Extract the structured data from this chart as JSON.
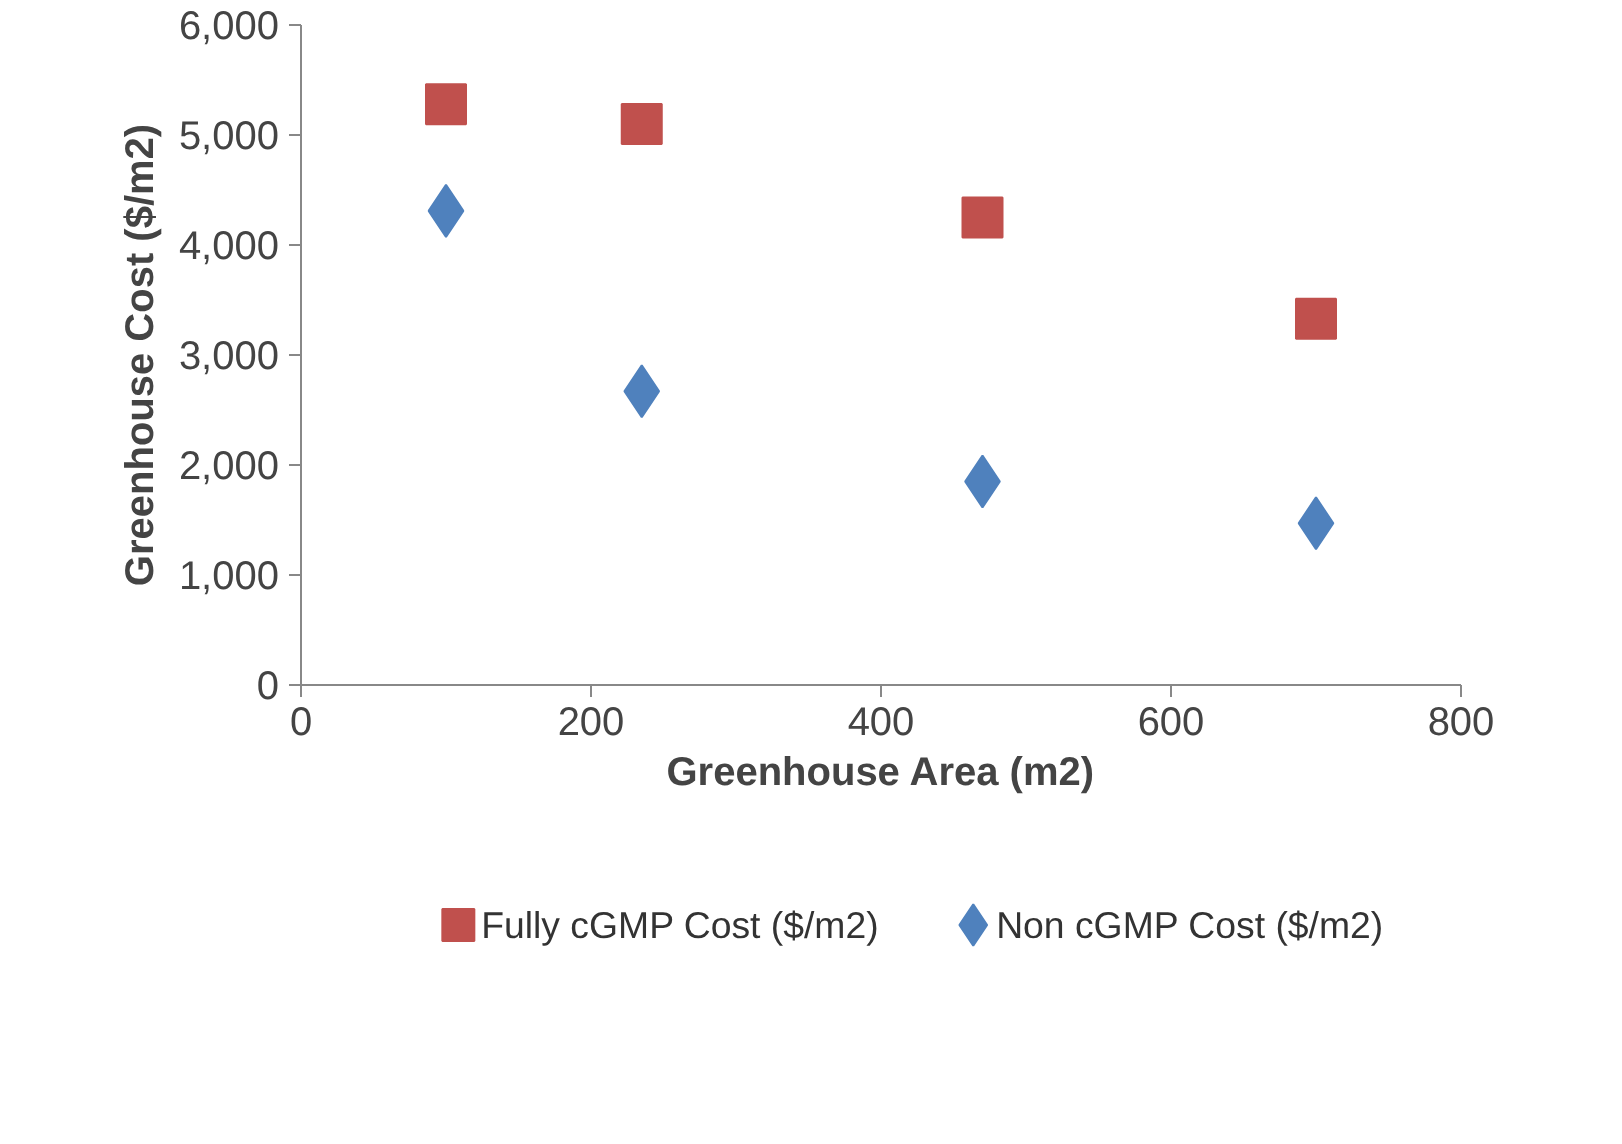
{
  "chart_data": {
    "type": "scatter",
    "xlabel": "Greenhouse Area (m2)",
    "ylabel": "Greenhouse Cost ($/m2)",
    "xlim": [
      0,
      800
    ],
    "xticks": [
      0,
      200,
      400,
      600,
      800
    ],
    "ylim": [
      0,
      6000
    ],
    "yticks": [
      {
        "value": 0,
        "label": "0"
      },
      {
        "value": 1000,
        "label": "1,000"
      },
      {
        "value": 2000,
        "label": "2,000"
      },
      {
        "value": 3000,
        "label": "3,000"
      },
      {
        "value": 4000,
        "label": "4,000"
      },
      {
        "value": 5000,
        "label": "5,000"
      },
      {
        "value": 6000,
        "label": "6,000"
      }
    ],
    "grid": false,
    "legend": "bottom",
    "series": [
      {
        "name": "Fully cGMP Cost ($/m2)",
        "color": "#c0504d",
        "marker": "square",
        "x": [
          100,
          235,
          470,
          700
        ],
        "values": [
          5280,
          5100,
          4250,
          3330
        ]
      },
      {
        "name": "Non cGMP Cost ($/m2)",
        "color": "#4f81bd",
        "marker": "diamond",
        "x": [
          100,
          235,
          470,
          700
        ],
        "values": [
          4310,
          2670,
          1850,
          1470
        ]
      }
    ]
  }
}
